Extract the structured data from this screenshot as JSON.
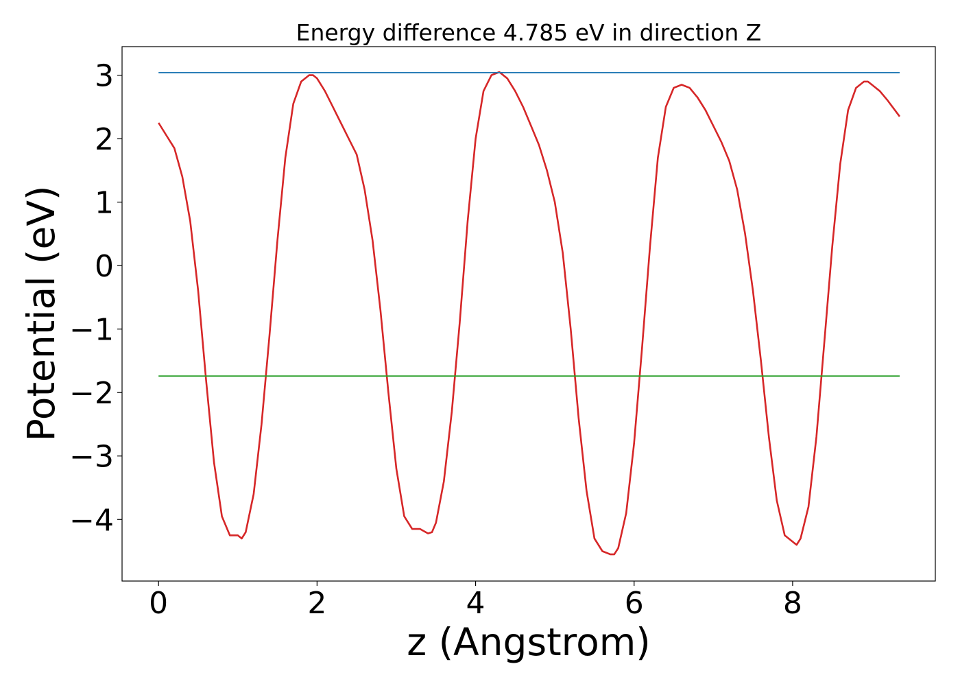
{
  "chart_data": {
    "type": "line",
    "title": "Energy difference 4.785 eV in direction Z",
    "xlabel": "z (Angstrom)",
    "ylabel": "Potential (eV)",
    "xlim": [
      -0.46,
      9.8
    ],
    "ylim": [
      -4.97,
      3.45
    ],
    "xticks": [
      0,
      2,
      4,
      6,
      8
    ],
    "xtick_labels": [
      "0",
      "2",
      "4",
      "6",
      "8"
    ],
    "yticks": [
      3,
      2,
      1,
      0,
      -1,
      -2,
      -3,
      -4
    ],
    "ytick_labels": [
      "3",
      "2",
      "1",
      "0",
      "−1",
      "−2",
      "−3",
      "−4"
    ],
    "grid": false,
    "series": [
      {
        "color": "#d62728",
        "x": [
          0.0,
          0.1,
          0.2,
          0.3,
          0.4,
          0.5,
          0.6,
          0.7,
          0.8,
          0.9,
          1.0,
          1.05,
          1.1,
          1.2,
          1.3,
          1.4,
          1.5,
          1.6,
          1.7,
          1.8,
          1.9,
          1.95,
          2.0,
          2.1,
          2.2,
          2.3,
          2.4,
          2.5,
          2.6,
          2.7,
          2.8,
          2.9,
          3.0,
          3.1,
          3.2,
          3.3,
          3.4,
          3.45,
          3.5,
          3.6,
          3.7,
          3.8,
          3.9,
          4.0,
          4.1,
          4.2,
          4.3,
          4.4,
          4.5,
          4.6,
          4.7,
          4.8,
          4.9,
          5.0,
          5.1,
          5.2,
          5.3,
          5.4,
          5.5,
          5.6,
          5.7,
          5.75,
          5.8,
          5.9,
          6.0,
          6.1,
          6.2,
          6.3,
          6.4,
          6.5,
          6.6,
          6.7,
          6.8,
          6.9,
          7.0,
          7.1,
          7.2,
          7.3,
          7.4,
          7.5,
          7.6,
          7.7,
          7.8,
          7.9,
          8.0,
          8.05,
          8.1,
          8.2,
          8.3,
          8.4,
          8.5,
          8.6,
          8.7,
          8.8,
          8.9,
          8.95,
          9.0,
          9.1,
          9.2,
          9.35
        ],
        "y": [
          2.25,
          2.05,
          1.85,
          1.4,
          0.7,
          -0.4,
          -1.8,
          -3.1,
          -3.95,
          -4.25,
          -4.25,
          -4.3,
          -4.2,
          -3.6,
          -2.5,
          -1.1,
          0.4,
          1.7,
          2.55,
          2.9,
          3.0,
          3.0,
          2.95,
          2.75,
          2.5,
          2.25,
          2.0,
          1.75,
          1.2,
          0.4,
          -0.7,
          -2.0,
          -3.2,
          -3.95,
          -4.15,
          -4.15,
          -4.22,
          -4.2,
          -4.05,
          -3.4,
          -2.3,
          -0.9,
          0.7,
          2.0,
          2.75,
          3.0,
          3.05,
          2.95,
          2.75,
          2.5,
          2.2,
          1.9,
          1.5,
          1.0,
          0.2,
          -1.0,
          -2.4,
          -3.55,
          -4.3,
          -4.5,
          -4.55,
          -4.55,
          -4.45,
          -3.9,
          -2.8,
          -1.3,
          0.3,
          1.7,
          2.5,
          2.8,
          2.85,
          2.8,
          2.65,
          2.45,
          2.2,
          1.95,
          1.65,
          1.2,
          0.5,
          -0.4,
          -1.5,
          -2.7,
          -3.7,
          -4.25,
          -4.35,
          -4.4,
          -4.3,
          -3.8,
          -2.7,
          -1.2,
          0.3,
          1.6,
          2.45,
          2.8,
          2.9,
          2.9,
          2.85,
          2.75,
          2.6,
          2.35
        ]
      },
      {
        "color": "#1f77b4",
        "x": [
          0.0,
          9.35
        ],
        "y": [
          3.04,
          3.04
        ]
      },
      {
        "color": "#2ca02c",
        "x": [
          0.0,
          9.35
        ],
        "y": [
          -1.74,
          -1.74
        ]
      }
    ]
  }
}
